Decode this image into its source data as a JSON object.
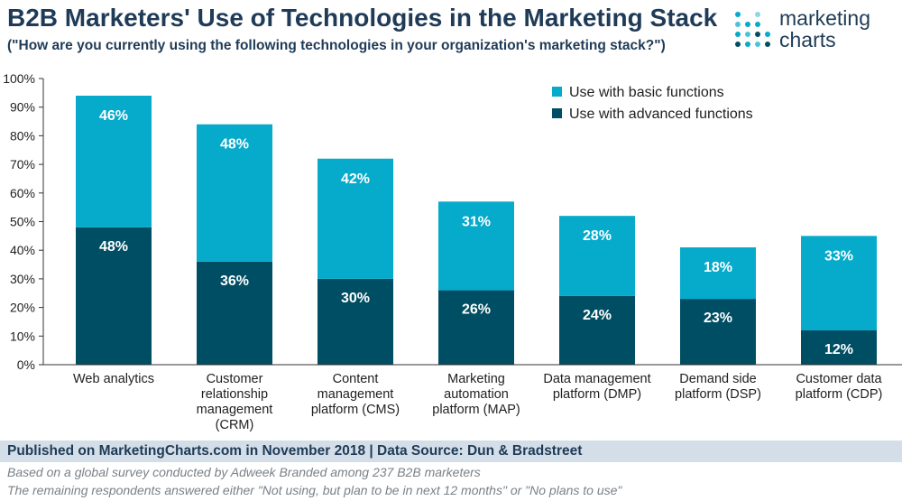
{
  "title": "B2B Marketers' Use of Technologies in the Marketing Stack",
  "subtitle": "(\"How are you currently using the following technologies in your organization's marketing stack?\")",
  "logo": {
    "line1": "marketing",
    "line2": "charts",
    "icon": "dot-grid-logo-icon"
  },
  "footer": {
    "published": "Published on MarketingCharts.com in November 2018 | Data Source: Dun & Bradstreet",
    "note1": "Based on a global survey conducted by Adweek Branded among 237 B2B marketers",
    "note2": "The remaining respondents answered either \"Not using, but plan to be in next 12 months\" or \"No plans to use\""
  },
  "colors": {
    "basic": "#06aacb",
    "advanced": "#004e63",
    "axis": "#333333"
  },
  "chart_data": {
    "type": "bar",
    "stacked": true,
    "categories": [
      [
        "Web analytics"
      ],
      [
        "Customer",
        "relationship",
        "management",
        "(CRM)"
      ],
      [
        "Content",
        "management",
        "platform (CMS)"
      ],
      [
        "Marketing",
        "automation",
        "platform (MAP)"
      ],
      [
        "Data management",
        "platform (DMP)"
      ],
      [
        "Demand side",
        "platform (DSP)"
      ],
      [
        "Customer data",
        "platform (CDP)"
      ]
    ],
    "series": [
      {
        "name": "Use with advanced functions",
        "values": [
          48,
          36,
          30,
          26,
          24,
          23,
          12
        ],
        "labels": [
          "48%",
          "36%",
          "30%",
          "26%",
          "24%",
          "23%",
          "12%"
        ]
      },
      {
        "name": "Use with basic functions",
        "values": [
          46,
          48,
          42,
          31,
          28,
          18,
          33
        ],
        "labels": [
          "46%",
          "48%",
          "42%",
          "31%",
          "28%",
          "18%",
          "33%"
        ]
      }
    ],
    "yticks": [
      "0%",
      "10%",
      "20%",
      "30%",
      "40%",
      "50%",
      "60%",
      "70%",
      "80%",
      "90%",
      "100%"
    ],
    "ylim": [
      0,
      100
    ],
    "grid": false,
    "legend": {
      "position": "top-right",
      "order": [
        "Use with basic functions",
        "Use with advanced functions"
      ]
    }
  }
}
